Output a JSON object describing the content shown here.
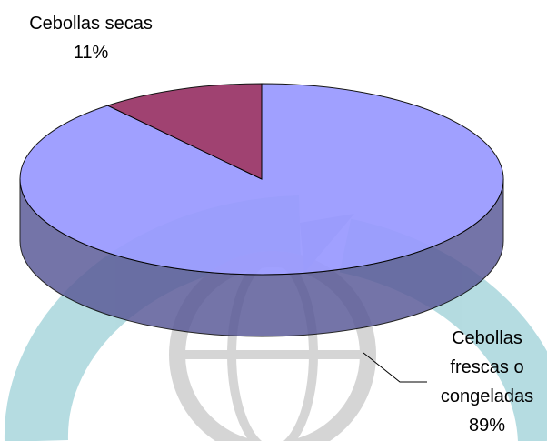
{
  "chart_data": {
    "type": "pie3d",
    "categories": [
      "Cebollas frescas o congeladas",
      "Cebollas secas"
    ],
    "values": [
      89,
      11
    ],
    "value_labels": [
      "89%",
      "11%"
    ],
    "colors": [
      "#9999ff",
      "#993366"
    ]
  }
}
